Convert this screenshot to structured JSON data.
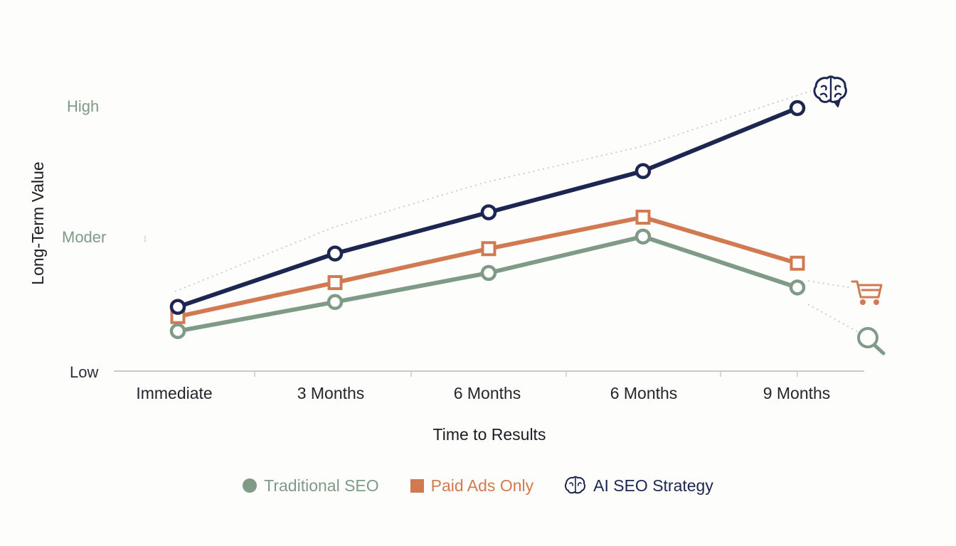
{
  "chart_data": {
    "type": "line",
    "xlabel": "Time to Results",
    "ylabel": "Long-Term Value",
    "categories": [
      "Immediate",
      "3 Months",
      "6 Months",
      "6 Months",
      "9 Months"
    ],
    "y_tick_labels": [
      "Low",
      "Moder",
      "High"
    ],
    "ylim": [
      0,
      100
    ],
    "grid": false,
    "legend_position": "bottom",
    "series": [
      {
        "name": "Traditional SEO",
        "values": [
          8,
          20,
          32,
          47,
          26
        ],
        "color": "#7f9a86",
        "marker": "circle",
        "end_icon": "search-icon"
      },
      {
        "name": "Paid Ads Only",
        "values": [
          14,
          28,
          42,
          55,
          36
        ],
        "color": "#d17a52",
        "marker": "square",
        "end_icon": "shopping-cart-icon"
      },
      {
        "name": "AI SEO Strategy",
        "values": [
          18,
          40,
          57,
          74,
          100
        ],
        "color": "#1c2650",
        "marker": "circle",
        "end_icon": "brain-icon"
      }
    ]
  }
}
